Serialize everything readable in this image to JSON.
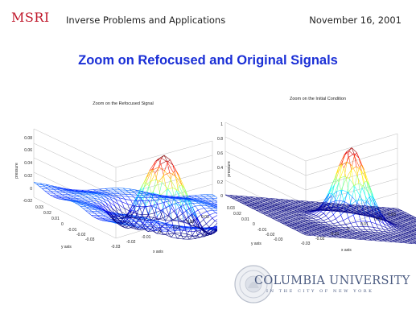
{
  "header": {
    "logo": "MSRI",
    "title": "Inverse Problems and Applications",
    "date": "November 16, 2001"
  },
  "slide": {
    "title": "Zoom on Refocused and Original Signals"
  },
  "plots": [
    {
      "title": "Zoom on the Refocused Signal",
      "zlabel": "pressure",
      "ylabel": "y axis",
      "xlabel": "x axis",
      "zticks": [
        "0.08",
        "0.06",
        "0.04",
        "0.02",
        "0",
        "-0.02"
      ],
      "yticks": [
        "0.03",
        "0.02",
        "0.01",
        "0",
        "-0.01",
        "-0.02",
        "-0.03"
      ],
      "xticks": [
        "-0.03",
        "-0.02",
        "-0.01",
        "0",
        "0.01",
        "0.02",
        "0.03"
      ]
    },
    {
      "title": "Zoom on the Initial Condition",
      "zlabel": "pressure",
      "ylabel": "y axis",
      "xlabel": "x axis",
      "zticks": [
        "1",
        "0.8",
        "0.6",
        "0.4",
        "0.2",
        "0"
      ],
      "yticks": [
        "0.03",
        "0.02",
        "0.01",
        "0",
        "-0.01",
        "-0.02",
        "-0.03"
      ],
      "xticks": [
        "-0.03",
        "-0.02",
        "-0.01",
        "0",
        "0.01",
        "0.02",
        "0.03"
      ]
    }
  ],
  "footer": {
    "university": "COLUMBIA UNIVERSITY",
    "subtitle": "IN THE CITY OF NEW YORK",
    "seal_icon": "columbia-seal-icon"
  }
}
